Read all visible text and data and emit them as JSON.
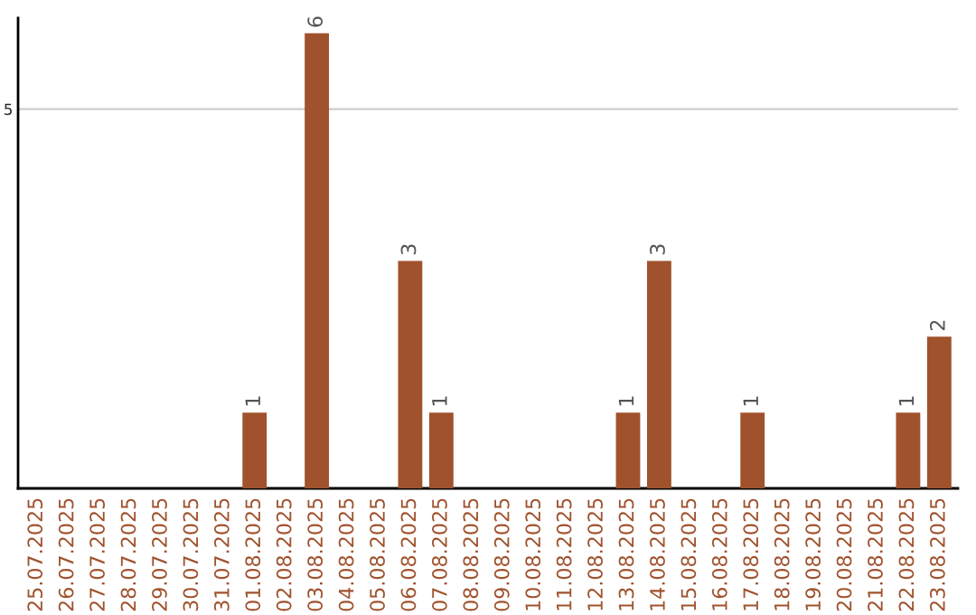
{
  "chart_data": {
    "type": "bar",
    "categories": [
      "25.07.2025",
      "26.07.2025",
      "27.07.2025",
      "28.07.2025",
      "29.07.2025",
      "30.07.2025",
      "31.07.2025",
      "01.08.2025",
      "02.08.2025",
      "03.08.2025",
      "04.08.2025",
      "05.08.2025",
      "06.08.2025",
      "07.08.2025",
      "08.08.2025",
      "09.08.2025",
      "10.08.2025",
      "11.08.2025",
      "12.08.2025",
      "13.08.2025",
      "14.08.2025",
      "15.08.2025",
      "16.08.2025",
      "17.08.2025",
      "18.08.2025",
      "19.08.2025",
      "20.08.2025",
      "21.08.2025",
      "22.08.2025",
      "23.08.2025"
    ],
    "values": [
      0,
      0,
      0,
      0,
      0,
      0,
      0,
      1,
      0,
      6,
      0,
      0,
      3,
      1,
      0,
      0,
      0,
      0,
      0,
      1,
      3,
      0,
      0,
      1,
      0,
      0,
      0,
      0,
      1,
      2
    ],
    "value_labels": [
      null,
      null,
      null,
      null,
      null,
      null,
      null,
      "1",
      null,
      "6",
      null,
      null,
      "3",
      "1",
      null,
      null,
      null,
      null,
      null,
      "1",
      "3",
      null,
      null,
      "1",
      null,
      null,
      null,
      null,
      "1",
      "2"
    ],
    "color": "#a0522d",
    "ylim": [
      0,
      6.2
    ],
    "yticks": [
      5
    ],
    "grid": "y"
  }
}
